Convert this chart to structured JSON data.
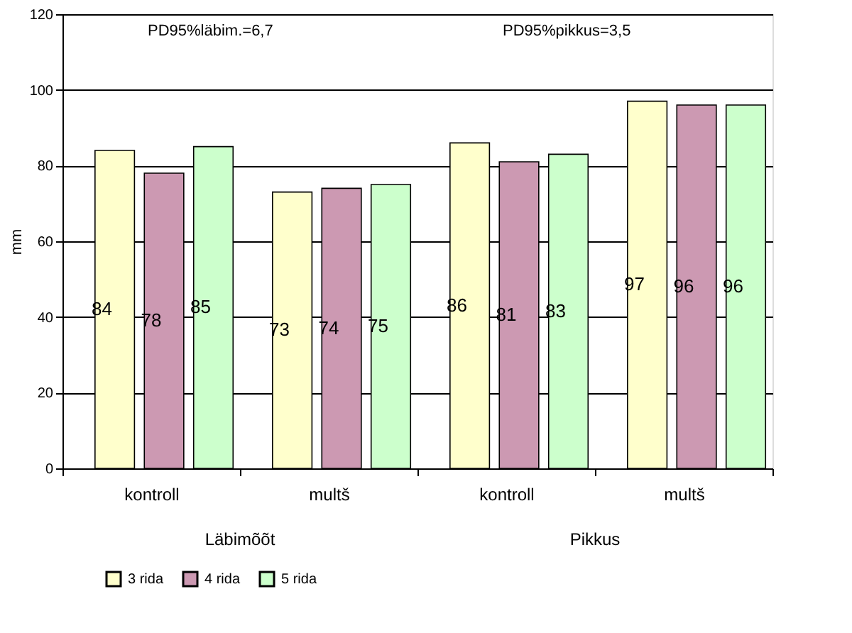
{
  "chart_data": {
    "type": "bar",
    "categories": [
      "kontroll",
      "multš",
      "kontroll",
      "multš"
    ],
    "series": [
      {
        "name": "3 rida",
        "color": "#ffffcc",
        "values": [
          84,
          73,
          86,
          97
        ]
      },
      {
        "name": "4 rida",
        "color": "#cc99b2",
        "values": [
          78,
          74,
          81,
          96
        ]
      },
      {
        "name": "5 rida",
        "color": "#ccffcc",
        "values": [
          85,
          75,
          83,
          96
        ]
      }
    ],
    "ylabel": "mm",
    "ylim": [
      0,
      120
    ],
    "yticks": [
      0,
      20,
      40,
      60,
      80,
      100,
      120
    ],
    "grid": "y",
    "legend": "bottom",
    "data_labels": true,
    "annotations": [
      "PD95%läbim.=6,7",
      "PD95%pikkus=3,5",
      "Läbimõõt",
      "Pikkus"
    ]
  }
}
